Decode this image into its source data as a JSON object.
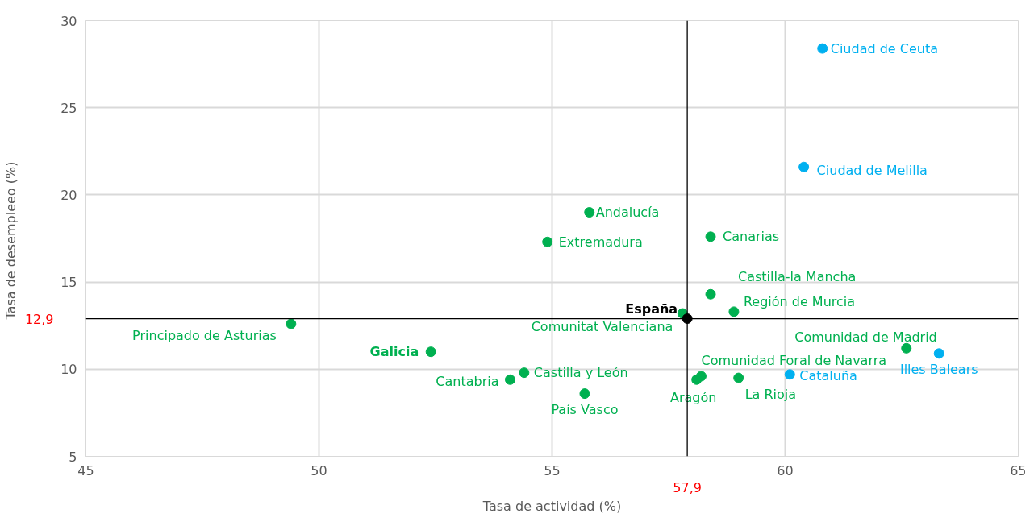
{
  "chart_data": {
    "type": "scatter",
    "xlabel": "Tasa de actividad (%)",
    "ylabel": "Tasa de desempleeo  (%)",
    "xlim": [
      45,
      65
    ],
    "xticks": [
      45,
      50,
      55,
      60,
      65
    ],
    "ylim": [
      5,
      30
    ],
    "yticks": [
      5,
      10,
      15,
      20,
      25,
      30
    ],
    "grid": true,
    "marker": "circle",
    "ref_lines": [
      {
        "axis": "x",
        "value": 57.9,
        "label": "57,9",
        "color": "#000000"
      },
      {
        "axis": "y",
        "value": 12.9,
        "label": "12,9",
        "color": "#000000"
      }
    ],
    "series": [
      {
        "name": "Ciudad de Ceuta",
        "color": "#00b0f0",
        "x": [
          60.8
        ],
        "values": [
          28.4
        ]
      },
      {
        "name": "Ciudad de Melilla",
        "color": "#00b0f0",
        "x": [
          60.4
        ],
        "values": [
          21.6
        ]
      },
      {
        "name": "Andalucía",
        "color": "#00b050",
        "x": [
          55.8
        ],
        "values": [
          19.0
        ]
      },
      {
        "name": "Extremadura",
        "color": "#00b050",
        "x": [
          54.9
        ],
        "values": [
          17.3
        ]
      },
      {
        "name": "Canarias",
        "color": "#00b050",
        "x": [
          58.4
        ],
        "values": [
          17.6
        ]
      },
      {
        "name": "Castilla-la Mancha",
        "color": "#00b050",
        "x": [
          58.4
        ],
        "values": [
          14.3
        ]
      },
      {
        "name": "Región de Murcia",
        "color": "#00b050",
        "x": [
          58.9
        ],
        "values": [
          13.3
        ]
      },
      {
        "name": "Comunitat Valenciana",
        "color": "#00b050",
        "x": [
          57.8
        ],
        "values": [
          13.2
        ]
      },
      {
        "name": "Principado de Asturias",
        "color": "#00b050",
        "x": [
          49.4
        ],
        "values": [
          12.6
        ]
      },
      {
        "name": "Galicia",
        "color": "#00b050",
        "x": [
          52.4
        ],
        "values": [
          11.0
        ]
      },
      {
        "name": "Comunidad de Madrid",
        "color": "#00b050",
        "x": [
          62.6
        ],
        "values": [
          11.2
        ]
      },
      {
        "name": "Illes Balears",
        "color": "#00b0f0",
        "x": [
          63.3
        ],
        "values": [
          10.9
        ]
      },
      {
        "name": "Cataluña",
        "color": "#00b0f0",
        "x": [
          60.1
        ],
        "values": [
          9.7
        ]
      },
      {
        "name": "Comunidad Foral de Navarra",
        "color": "#00b050",
        "x": [
          58.2
        ],
        "values": [
          9.6
        ]
      },
      {
        "name": "Aragón",
        "color": "#00b050",
        "x": [
          58.1
        ],
        "values": [
          9.4
        ]
      },
      {
        "name": "La Rioja",
        "color": "#00b050",
        "x": [
          59.0
        ],
        "values": [
          9.5
        ]
      },
      {
        "name": "Castilla y León",
        "color": "#00b050",
        "x": [
          54.4
        ],
        "values": [
          9.8
        ]
      },
      {
        "name": "Cantabria",
        "color": "#00b050",
        "x": [
          54.1
        ],
        "values": [
          9.4
        ]
      },
      {
        "name": "País Vasco",
        "color": "#00b050",
        "x": [
          55.7
        ],
        "values": [
          8.6
        ]
      },
      {
        "name": "España",
        "color": "#000000",
        "x": [
          57.9
        ],
        "values": [
          12.9
        ]
      }
    ]
  }
}
